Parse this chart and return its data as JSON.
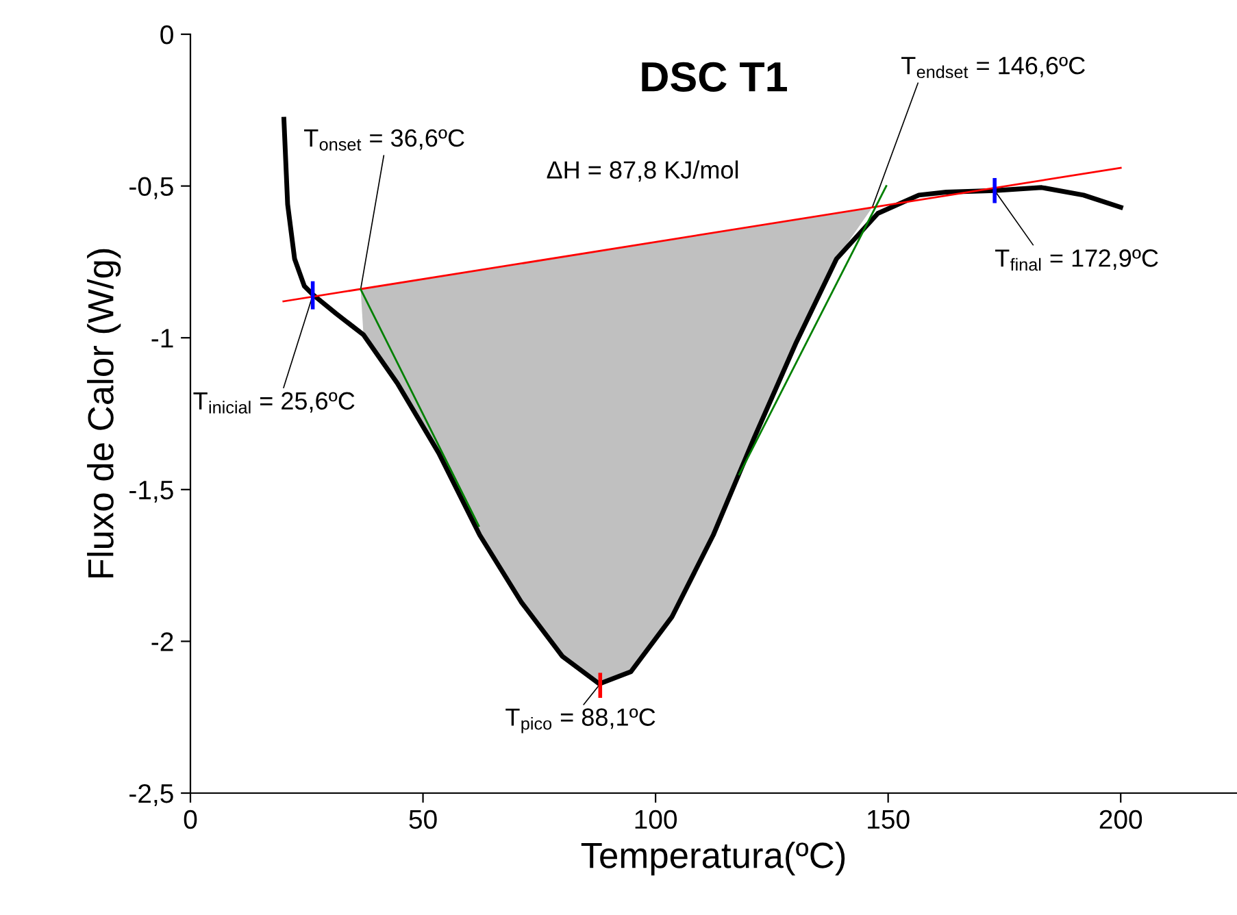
{
  "chart_data": {
    "type": "line",
    "title": "DSC T1",
    "xlabel": "Temperatura(ºC)",
    "ylabel": "Fluxo de Calor (W/g)",
    "xlim": [
      0,
      225
    ],
    "xticks": [
      0,
      50,
      100,
      150,
      200
    ],
    "ylim": [
      -2.5,
      0
    ],
    "yticks": [
      {
        "value": -2.5,
        "label": "-2,5"
      },
      -2,
      {
        "value": -1.5,
        "label": "-1,5"
      },
      -1,
      {
        "value": -0.5,
        "label": "-0,5"
      },
      0
    ],
    "grid": false,
    "legend": false,
    "marker": "none",
    "line_style": "solid",
    "series": [
      {
        "color": "#000000",
        "x": [
          20.1,
          20.9,
          22.4,
          24.5,
          26.5,
          31.3,
          37.2,
          44.5,
          53.4,
          62.2,
          71.1,
          80,
          87.9,
          94.7,
          103.5,
          112.4,
          121.2,
          130.1,
          138.9,
          147.8,
          156.6,
          162.5,
          172.9,
          183,
          192,
          200
        ],
        "values": [
          -0.28,
          -0.56,
          -0.74,
          -0.83,
          -0.86,
          -0.92,
          -0.99,
          -1.15,
          -1.38,
          -1.65,
          -1.87,
          -2.05,
          -2.14,
          -2.1,
          -1.92,
          -1.65,
          -1.33,
          -1.02,
          -0.74,
          -0.59,
          -0.53,
          -0.52,
          -0.515,
          -0.505,
          -0.53,
          -0.57
        ]
      },
      {
        "color": "#ff0000",
        "x": [
          20,
          200
        ],
        "values": [
          -0.88,
          -0.44
        ]
      },
      {
        "color": "#008000",
        "x": [
          36.6,
          62
        ],
        "values": [
          -0.84,
          -1.62
        ]
      },
      {
        "color": "#008000",
        "x": [
          149.6,
          118
        ],
        "values": [
          -0.5,
          -1.45
        ]
      },
      {
        "color": "#0000ff",
        "x": [
          26.3,
          26.3
        ],
        "values": [
          -0.82,
          -0.9
        ]
      },
      {
        "color": "#0000ff",
        "x": [
          172.9,
          172.9
        ],
        "values": [
          -0.48,
          -0.55
        ]
      },
      {
        "color": "#ff0000",
        "x": [
          88.1,
          88.1
        ],
        "values": [
          -2.11,
          -2.18
        ]
      }
    ],
    "annotations": [
      {
        "text": "T$_{onset}$ = 36,6ºC",
        "x": 36.6,
        "y": -0.84
      },
      {
        "text": "T$_{endset}$ = 146,6ºC",
        "x": 146.6,
        "y": -0.57
      },
      {
        "text": "T$_{final}$ = 172,9ºC",
        "x": 172.9,
        "y": -0.515
      },
      {
        "text": "T$_{inicial}$ = 25,6ºC",
        "x": 26.3,
        "y": -0.86
      },
      {
        "text": "T$_{pico}$ = 88,1ºC",
        "x": 88.1,
        "y": -2.14
      },
      "ΔH = 87,8 KJ/mol"
    ]
  }
}
